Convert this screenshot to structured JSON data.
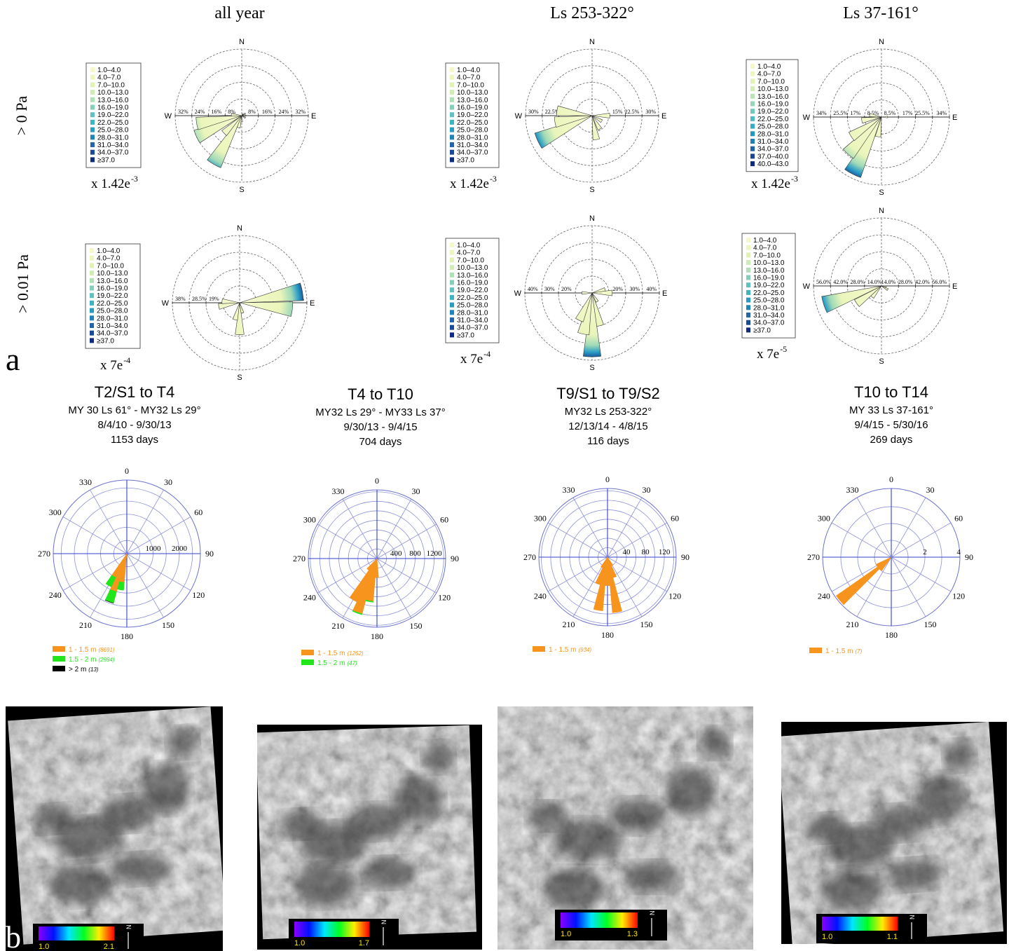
{
  "panel_labels": {
    "a": "a",
    "b": "b"
  },
  "wind_roses": {
    "columns": [
      "all year",
      "Ls 253-322°",
      "Ls 37-161°"
    ],
    "rows": [
      "> 0 Pa",
      "> 0.01 Pa"
    ],
    "compass": [
      "N",
      "E",
      "S",
      "W"
    ],
    "panels": [
      {
        "bins": [
          "1.0–4.0",
          "4.0–7.0",
          "7.0–10.0",
          "10.0–13.0",
          "13.0–16.0",
          "16.0–19.0",
          "19.0–22.0",
          "22.0–25.0",
          "25.0–28.0",
          "28.0–31.0",
          "31.0–34.0",
          "34.0–37.0",
          "≥37.0"
        ],
        "scale_base": "x 1.42e",
        "scale_exp": "-3",
        "rticks": [
          {
            "value": 8,
            "label": "8%"
          },
          {
            "value": 16,
            "label": "16%"
          },
          {
            "value": 24,
            "label": "24%"
          },
          {
            "value": 32,
            "label": "32%"
          }
        ],
        "petals": [
          {
            "dir": 30,
            "value": 1
          },
          {
            "dir": 60,
            "value": 2
          },
          {
            "dir": 90,
            "value": 2
          },
          {
            "dir": 120,
            "value": 2
          },
          {
            "dir": 180,
            "value": 3
          },
          {
            "dir": 195,
            "value": 6
          },
          {
            "dir": 210,
            "value": 27
          },
          {
            "dir": 225,
            "value": 12
          },
          {
            "dir": 245,
            "value": 24
          },
          {
            "dir": 260,
            "value": 22
          },
          {
            "dir": 275,
            "value": 5
          }
        ]
      },
      {
        "bins": [
          "1.0–4.0",
          "4.0–7.0",
          "7.0–10.0",
          "10.0–13.0",
          "13.0–16.0",
          "16.0–19.0",
          "19.0–22.0",
          "22.0–25.0",
          "25.0–28.0",
          "28.0–31.0",
          "31.0–34.0",
          "34.0–37.0",
          "≥37.0"
        ],
        "scale_base": "x 1.42e",
        "scale_exp": "-3",
        "rticks": [
          {
            "value": 15,
            "label": "15%"
          },
          {
            "value": 22.5,
            "label": "22.5%"
          },
          {
            "value": 30,
            "label": "30%"
          }
        ],
        "petals": [
          {
            "dir": 90,
            "value": 8
          },
          {
            "dir": 120,
            "value": 5
          },
          {
            "dir": 150,
            "value": 7
          },
          {
            "dir": 170,
            "value": 11
          },
          {
            "dir": 245,
            "value": 27
          },
          {
            "dir": 260,
            "value": 17
          },
          {
            "dir": 278,
            "value": 16
          }
        ]
      },
      {
        "bins": [
          "1.0–4.0",
          "4.0–7.0",
          "7.0–10.0",
          "10.0–13.0",
          "13.0–16.0",
          "16.0–19.0",
          "19.0–22.0",
          "22.0–25.0",
          "25.0–28.0",
          "28.0–31.0",
          "31.0–34.0",
          "34.0–37.0",
          "37.0–40.0",
          "40.0–43.0"
        ],
        "scale_base": "x 1.42e",
        "scale_exp": "-3",
        "rticks": [
          {
            "value": 8.5,
            "label": "8.5%"
          },
          {
            "value": 17,
            "label": "17%"
          },
          {
            "value": 25.5,
            "label": "25.5%"
          },
          {
            "value": 34,
            "label": "34%"
          }
        ],
        "petals": [
          {
            "dir": 90,
            "value": 3
          },
          {
            "dir": 190,
            "value": 10
          },
          {
            "dir": 207,
            "value": 32
          },
          {
            "dir": 222,
            "value": 25
          },
          {
            "dir": 237,
            "value": 18
          },
          {
            "dir": 260,
            "value": 10
          },
          {
            "dir": 280,
            "value": 6
          }
        ]
      },
      {
        "bins": [
          "1.0–4.0",
          "4.0–7.0",
          "7.0–10.0",
          "10.0–13.0",
          "13.0–16.0",
          "16.0–19.0",
          "19.0–22.0",
          "22.0–25.0",
          "25.0–28.0",
          "28.0–31.0",
          "31.0–34.0",
          "34.0–37.0",
          "≥37.0"
        ],
        "scale_base": "x 7e",
        "scale_exp": "-4",
        "rticks": [
          {
            "value": 19,
            "label": "19%"
          },
          {
            "value": 28.5,
            "label": "28.5%"
          },
          {
            "value": 38,
            "label": "38%"
          }
        ],
        "petals": [
          {
            "dir": 80,
            "value": 36
          },
          {
            "dir": 97,
            "value": 30
          },
          {
            "dir": 165,
            "value": 6
          },
          {
            "dir": 180,
            "value": 18
          },
          {
            "dir": 195,
            "value": 10
          },
          {
            "dir": 260,
            "value": 12
          },
          {
            "dir": 275,
            "value": 10
          }
        ]
      },
      {
        "bins": [
          "1.0–4.0",
          "4.0–7.0",
          "7.0–10.0",
          "10.0–13.0",
          "13.0–16.0",
          "16.0–19.0",
          "19.0–22.0",
          "22.0–25.0",
          "25.0–28.0",
          "28.0–31.0",
          "31.0–34.0",
          "34.0–37.0",
          "≥37.0"
        ],
        "scale_base": "x 7e",
        "scale_exp": "-4",
        "rticks": [
          {
            "value": 20,
            "label": "20%"
          },
          {
            "value": 30,
            "label": "30%"
          },
          {
            "value": 40,
            "label": "40%"
          }
        ],
        "petals": [
          {
            "dir": 75,
            "value": 8
          },
          {
            "dir": 90,
            "value": 12
          },
          {
            "dir": 150,
            "value": 6
          },
          {
            "dir": 168,
            "value": 20
          },
          {
            "dir": 180,
            "value": 38
          },
          {
            "dir": 192,
            "value": 25
          },
          {
            "dir": 205,
            "value": 18
          },
          {
            "dir": 270,
            "value": 6
          }
        ]
      },
      {
        "bins": [
          "1.0–4.0",
          "4.0–7.0",
          "7.0–10.0",
          "10.0–13.0",
          "13.0–16.0",
          "16.0–19.0",
          "19.0–22.0",
          "22.0–25.0",
          "25.0–28.0",
          "28.0–31.0",
          "31.0–34.0",
          "34.0–37.0",
          "≥37.0"
        ],
        "scale_base": "x 7e",
        "scale_exp": "-5",
        "rticks": [
          {
            "value": 14,
            "label": "14.0%"
          },
          {
            "value": 28,
            "label": "28.0%"
          },
          {
            "value": 42,
            "label": "42.0%"
          },
          {
            "value": 56,
            "label": "56.0%"
          }
        ],
        "petals": [
          {
            "dir": 100,
            "value": 4
          },
          {
            "dir": 120,
            "value": 6
          },
          {
            "dir": 220,
            "value": 12
          },
          {
            "dir": 235,
            "value": 25
          },
          {
            "dir": 252,
            "value": 50
          }
        ]
      }
    ]
  },
  "dune_roses": {
    "angle_ticks": [
      0,
      30,
      60,
      90,
      120,
      150,
      180,
      210,
      240,
      270,
      300,
      330
    ],
    "plots": [
      {
        "title": "T2/S1 to T4",
        "period": "MY 30 Ls 61° - MY32 Ls 29°",
        "dates": "8/4/10 - 9/30/13",
        "days": "1153 days",
        "rlim": 2800,
        "rticks": [
          1000,
          2000
        ],
        "directions": [
          190,
          200,
          210
        ],
        "series": [
          {
            "name": "1 - 1.5 m",
            "count": "(8691)",
            "color": "#f7941d",
            "values": [
              1100,
              1500,
              1000
            ]
          },
          {
            "name": "1.5 - 2 m",
            "count": "(2994)",
            "color": "#22e51b",
            "values": [
              300,
              450,
              400
            ]
          },
          {
            "name": "> 2 m",
            "count": "(13)",
            "color": "#000000",
            "values": [
              0,
              5,
              0
            ]
          }
        ]
      },
      {
        "title": "T4 to T10",
        "period": "MY32 Ls 29° - MY33 Ls 37°",
        "dates": "9/30/13 - 9/4/15",
        "days": "704 days",
        "rlim": 1440,
        "rticks": [
          400,
          800,
          1200
        ],
        "directions": [
          180,
          190,
          200,
          210,
          220
        ],
        "series": [
          {
            "name": "1 - 1.5 m",
            "count": "(1262)",
            "color": "#f7941d",
            "values": [
              400,
              900,
              1200,
              1000,
              300
            ]
          },
          {
            "name": "1.5 - 2 m",
            "count": "(47)",
            "color": "#22e51b",
            "values": [
              0,
              20,
              20,
              0,
              0
            ]
          }
        ]
      },
      {
        "title": "T9/S1 to T9/S2",
        "period": "MY32 Ls 253-322°",
        "dates": "12/13/14 - 4/8/15",
        "days": "116 days",
        "rlim": 145,
        "rticks": [
          40,
          80,
          120
        ],
        "directions": [
          150,
          160,
          170,
          180,
          190,
          200,
          210
        ],
        "series": [
          {
            "name": "1 - 1.5 m",
            "count": "(934)",
            "color": "#f7941d",
            "values": [
              20,
              45,
              118,
              60,
              114,
              60,
              25
            ]
          }
        ]
      },
      {
        "title": "T10 to T14",
        "period": "MY 33 Ls 37-161°",
        "dates": "9/4/15 - 5/30/16",
        "days": "269 days",
        "rlim": 4.08,
        "rticks": [
          2,
          4
        ],
        "directions": [
          220,
          230,
          240
        ],
        "series": [
          {
            "name": "1 - 1.5 m",
            "count": "(7)",
            "color": "#f7941d",
            "values": [
              1,
              4,
              1
            ]
          }
        ]
      }
    ]
  },
  "images": [
    {
      "cbar_min": "1.0",
      "cbar_max": "2.1",
      "north": "N"
    },
    {
      "cbar_min": "1.0",
      "cbar_max": "1.7",
      "north": "N"
    },
    {
      "cbar_min": "1.0",
      "cbar_max": "1.3",
      "north": "N"
    },
    {
      "cbar_min": "1.0",
      "cbar_max": "1.1",
      "north": "N"
    }
  ]
}
